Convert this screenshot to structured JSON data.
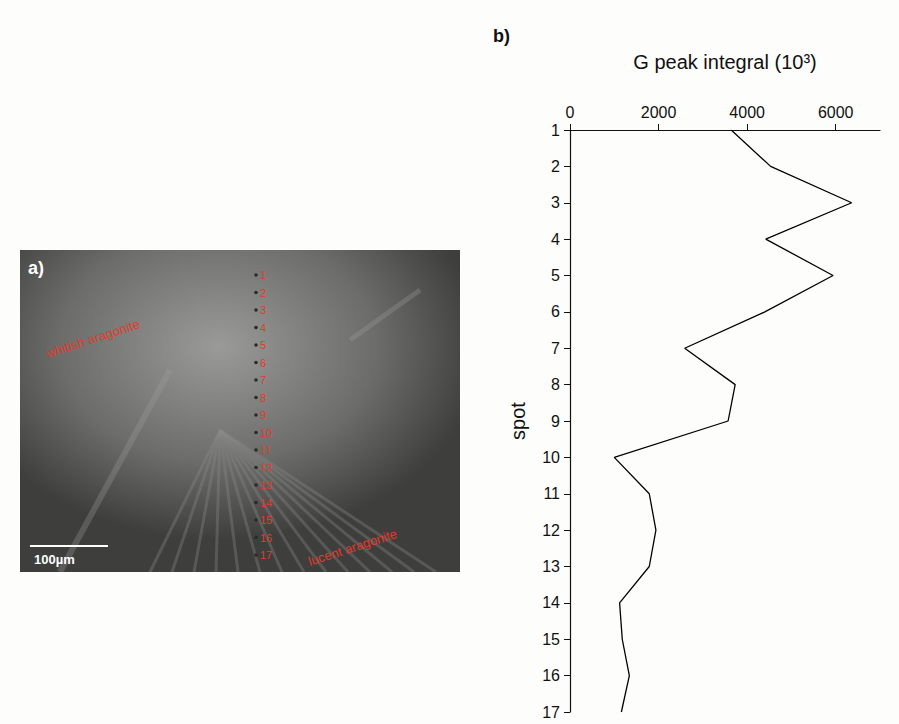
{
  "panel_a": {
    "label": "a)",
    "annotations": [
      "whitish aragonite",
      "lucent aragonite"
    ],
    "spots": [
      1,
      2,
      3,
      4,
      5,
      6,
      7,
      8,
      9,
      10,
      11,
      12,
      13,
      14,
      15,
      16,
      17
    ],
    "scale_bar": "100µm"
  },
  "chart_data": {
    "type": "line",
    "title": "b)",
    "x_label": "G peak integral (10³)",
    "y_label": "spot",
    "x": [
      3640,
      4530,
      6360,
      4420,
      5940,
      4400,
      2590,
      3730,
      3570,
      1000,
      1790,
      1940,
      1790,
      1120,
      1180,
      1340,
      1160
    ],
    "y": [
      1,
      2,
      3,
      4,
      5,
      6,
      7,
      8,
      9,
      10,
      11,
      12,
      13,
      14,
      15,
      16,
      17
    ],
    "color": "#000000",
    "marker": "none",
    "line_style": "solid",
    "grid": false,
    "xlim": [
      0,
      7000
    ],
    "xticks": [
      0,
      2000,
      4000,
      6000
    ],
    "ylim": [
      1,
      17
    ],
    "yticks": [
      1,
      2,
      3,
      4,
      5,
      6,
      7,
      8,
      9,
      10,
      11,
      12,
      13,
      14,
      15,
      16,
      17
    ]
  }
}
